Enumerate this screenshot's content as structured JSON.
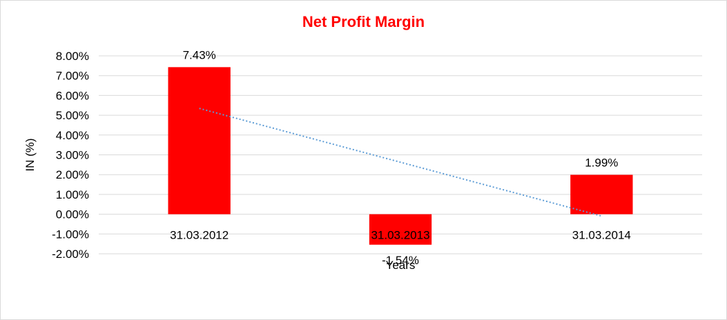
{
  "chart_data": {
    "type": "bar",
    "title": "Net Profit Margin",
    "xlabel": "Years",
    "ylabel": "IN (%)",
    "categories": [
      "31.03.2012",
      "31.03.2013",
      "31.03.2014"
    ],
    "series": [
      {
        "values": [
          7.43,
          -1.54,
          1.99
        ],
        "data_labels": [
          "7.43%",
          "-1.54%",
          "1.99%"
        ]
      }
    ],
    "trendline": {
      "type": "linear",
      "style": "dotted"
    },
    "ylim": [
      -2,
      8
    ],
    "yticks": [
      8,
      7,
      6,
      5,
      4,
      3,
      2,
      1,
      0,
      -1,
      -2
    ],
    "ytick_labels": [
      "8.00%",
      "7.00%",
      "6.00%",
      "5.00%",
      "4.00%",
      "3.00%",
      "2.00%",
      "1.00%",
      "0.00%",
      "-1.00%",
      "-2.00%"
    ],
    "grid": true,
    "legend": "none",
    "colors": {
      "bar": "#ff0000",
      "title": "#ff0000",
      "trendline": "#5b9bd5",
      "grid": "#d9d9d9"
    }
  }
}
